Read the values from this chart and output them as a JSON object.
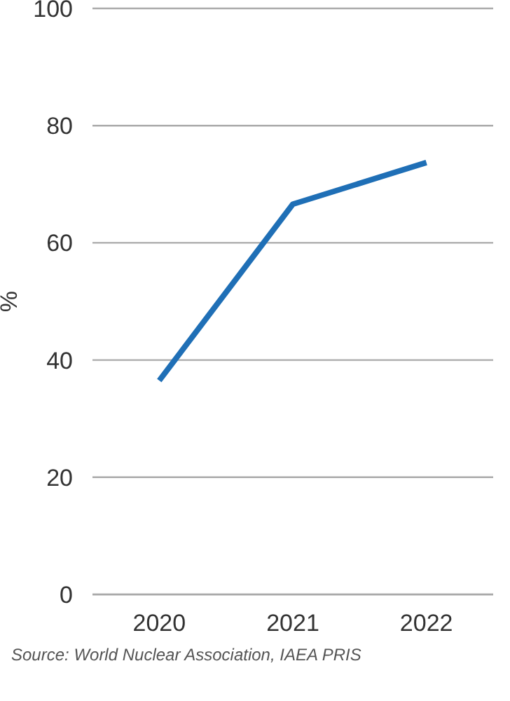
{
  "chart_data": {
    "type": "line",
    "ylabel": "%",
    "categories": [
      "2020",
      "2021",
      "2022"
    ],
    "series": [
      {
        "color": "#1f6fb6",
        "values": [
          36.5,
          66.6,
          73.7
        ]
      }
    ],
    "ylim": [
      0,
      100
    ],
    "yticks": [
      0,
      20,
      40,
      60,
      80,
      100
    ],
    "grid": "y",
    "legend": false,
    "marker": "none",
    "line_style": "solid",
    "annotations": [
      "Source: World Nuclear Association, IAEA PRIS"
    ]
  }
}
